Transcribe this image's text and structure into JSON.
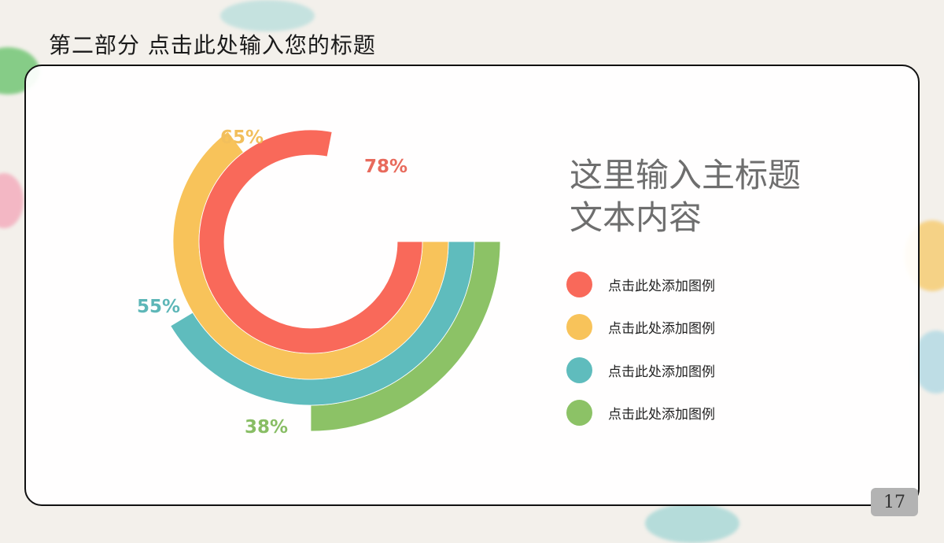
{
  "slide": {
    "section_title": "第二部分  点击此处输入您的标题",
    "main_title_line1": "这里输入主标题",
    "main_title_line2": "文本内容",
    "page_number": "17"
  },
  "legend": [
    {
      "label": "点击此处添加图例",
      "color": "#f9695a"
    },
    {
      "label": "点击此处添加图例",
      "color": "#f8c35a"
    },
    {
      "label": "点击此处添加图例",
      "color": "#5fbcbd"
    },
    {
      "label": "点击此处添加图例",
      "color": "#8cc266"
    }
  ],
  "chart_data": {
    "type": "radial-bar",
    "title": "",
    "series": [
      {
        "name": "点击此处添加图例",
        "value": 78,
        "label": "78%",
        "color": "#f9695a"
      },
      {
        "name": "点击此处添加图例",
        "value": 65,
        "label": "65%",
        "color": "#f8c35a"
      },
      {
        "name": "点击此处添加图例",
        "value": 55,
        "label": "55%",
        "color": "#5fbcbd"
      },
      {
        "name": "点击此处添加图例",
        "value": 38,
        "label": "38%",
        "color": "#8cc266"
      }
    ],
    "legend_position": "right",
    "grid": false
  }
}
